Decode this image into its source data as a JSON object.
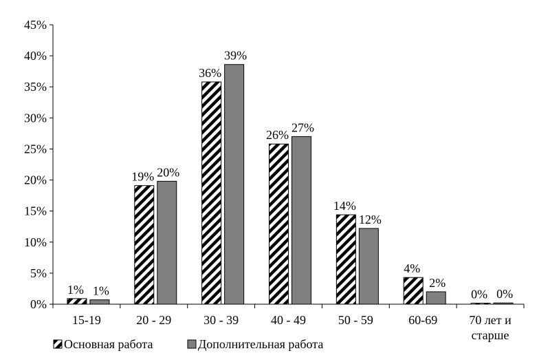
{
  "chart_data": {
    "type": "bar",
    "categories": [
      "15-19",
      "20 - 29",
      "30 - 39",
      "40 - 49",
      "50 - 59",
      "60-69",
      "70 лет и старше"
    ],
    "category_lines": [
      [
        "15-19"
      ],
      [
        "20 - 29"
      ],
      [
        "30 - 39"
      ],
      [
        "40 - 49"
      ],
      [
        "50 - 59"
      ],
      [
        "60-69"
      ],
      [
        "70 лет и",
        "старше"
      ]
    ],
    "series": [
      {
        "name": "Основная работа",
        "values": [
          0.9,
          19.1,
          35.8,
          25.8,
          14.4,
          4.3,
          0.1
        ],
        "labels": [
          "1%",
          "19%",
          "36%",
          "26%",
          "14%",
          "4%",
          "0%"
        ],
        "fill": "hatched",
        "color": "#000000"
      },
      {
        "name": "Дополнительная работа",
        "values": [
          0.7,
          19.8,
          38.6,
          27.0,
          12.2,
          2.0,
          0.2
        ],
        "labels": [
          "1%",
          "20%",
          "39%",
          "27%",
          "12%",
          "2%",
          "0%"
        ],
        "fill": "solid",
        "color": "#808080"
      }
    ],
    "ylim": [
      0,
      45
    ],
    "ytick_values": [
      0,
      5,
      10,
      15,
      20,
      25,
      30,
      35,
      40,
      45
    ],
    "ytick_labels": [
      "0%",
      "5%",
      "10%",
      "15%",
      "20%",
      "25%",
      "30%",
      "35%",
      "40%",
      "45%"
    ],
    "grid": false,
    "legend_position": "bottom-left",
    "title": "",
    "xlabel": "",
    "ylabel": ""
  }
}
